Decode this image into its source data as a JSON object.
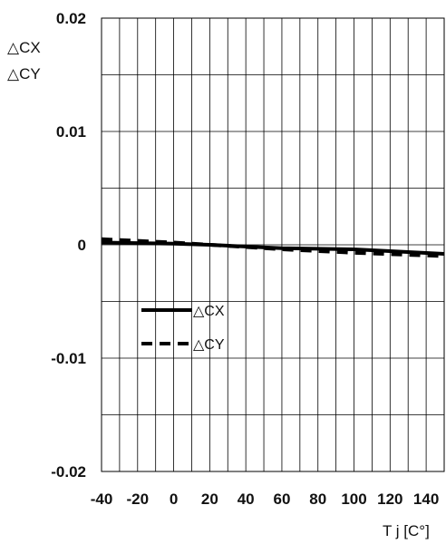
{
  "chart_data": {
    "type": "line",
    "title": "",
    "ylabel": [
      "△CX",
      "△CY"
    ],
    "xlabel": "T j [C°]",
    "xlim": [
      -40,
      150
    ],
    "ylim": [
      -0.02,
      0.02
    ],
    "x_ticks": [
      "-40",
      "-20",
      "0",
      "20",
      "40",
      "60",
      "80",
      "100",
      "120",
      "140"
    ],
    "x_tick_values": [
      -40,
      -20,
      0,
      20,
      40,
      60,
      80,
      100,
      120,
      140
    ],
    "y_ticks": [
      "0.02",
      "0.01",
      "0",
      "-0.01",
      "-0.02"
    ],
    "y_tick_values": [
      0.02,
      0.01,
      0,
      -0.01,
      -0.02
    ],
    "grid": true,
    "legend_position": "center-left",
    "series": [
      {
        "name": "△CX",
        "style": "solid",
        "color": "#000000",
        "x": [
          -40,
          0,
          20,
          60,
          100,
          150
        ],
        "y": [
          0.0002,
          0.0001,
          0.0,
          -0.0003,
          -0.0004,
          -0.0008
        ]
      },
      {
        "name": "△CY",
        "style": "dashed",
        "color": "#000000",
        "x": [
          -40,
          0,
          20,
          60,
          100,
          150
        ],
        "y": [
          0.0005,
          0.0002,
          0.0,
          -0.0004,
          -0.0007,
          -0.001
        ]
      }
    ]
  }
}
